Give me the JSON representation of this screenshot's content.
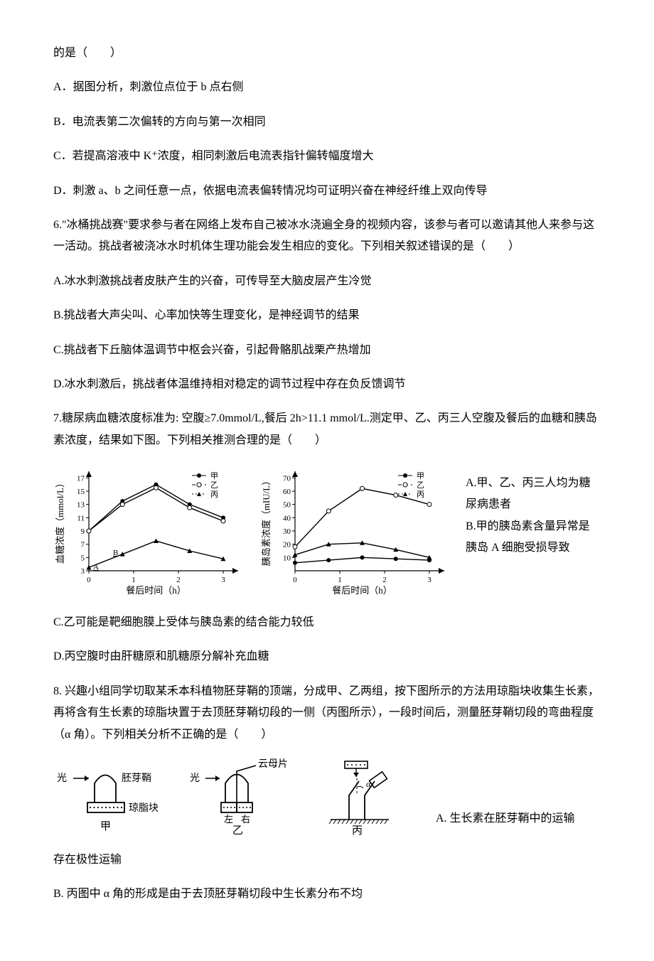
{
  "intro_cont": "的是（　　）",
  "q5": {
    "A": "A．据图分析，刺激位点位于 b 点右侧",
    "B": "B．电流表第二次偏转的方向与第一次相同",
    "C": "C．若提高溶液中 K⁺浓度，相同刺激后电流表指针偏转幅度增大",
    "D": "D．刺激 a、b 之间任意一点，依据电流表偏转情况均可证明兴奋在神经纤维上双向传导"
  },
  "q6": {
    "stem": "6.\"冰桶挑战赛\"要求参与者在网络上发布自己被冰水浇遍全身的视频内容，该参与者可以邀请其他人来参与这一活动。挑战者被浇冰水时机体生理功能会发生相应的变化。下列相关叙述错误的是（　　）",
    "A": "A.冰水刺激挑战者皮肤产生的兴奋，可传导至大脑皮层产生冷觉",
    "B": "B.挑战者大声尖叫、心率加快等生理变化，是神经调节的结果",
    "C": "C.挑战者下丘脑体温调节中枢会兴奋，引起骨骼肌战栗产热增加",
    "D": "D.冰水刺激后，挑战者体温维持相对稳定的调节过程中存在负反馈调节"
  },
  "q7": {
    "stem": "7.糖尿病血糖浓度标准为: 空腹≥7.0mmol/L,餐后 2h>11.1 mmol/L.测定甲、乙、丙三人空腹及餐后的血糖和胰岛素浓度，结果如下图。下列相关推测合理的是（　　）",
    "side_A": "A.甲、乙、丙三人均为糖尿病患者",
    "side_B": "B.甲的胰岛素含量异常是胰岛 A 细胞受损导致",
    "C": "C.乙可能是靶细胞膜上受体与胰岛素的结合能力较低",
    "D": "D.丙空腹时由肝糖原和肌糖原分解补充血糖"
  },
  "q8": {
    "stem": "8. 兴趣小组同学切取某禾本科植物胚芽鞘的顶端，分成甲、乙两组，按下图所示的方法用琼脂块收集生长素，再将含有生长素的琼脂块置于去顶胚芽鞘切段的一侧（丙图所示），一段时间后，测量胚芽鞘切段的弯曲程度（α 角）。下列相关分析不正确的是（　　）",
    "A_inline": "A. 生长素在胚芽鞘中的运输",
    "A_cont": "存在极性运输",
    "B": "B. 丙图中 α 角的形成是由于去顶胚芽鞘切段中生长素分布不均"
  },
  "chart1": {
    "type": "line",
    "ylabel": "血糖浓度（mmol/L）",
    "xlabel": "餐后时间（h）",
    "xticks": [
      "0",
      "1",
      "2",
      "3"
    ],
    "yticks": [
      "3",
      "5",
      "7",
      "9",
      "11",
      "13",
      "15",
      "17"
    ],
    "legend": [
      "甲",
      "乙",
      "丙"
    ],
    "legend_markers": [
      "solid-dot",
      "open-dot",
      "triangle"
    ],
    "annA": "A",
    "annB": "B",
    "jia_values": [
      9,
      13.5,
      16,
      13,
      11
    ],
    "yi_values": [
      9,
      13,
      15.5,
      12.5,
      10.5
    ],
    "bing_values": [
      3.5,
      5.5,
      7.5,
      6,
      4.8
    ],
    "line_color": "#000000",
    "axis_color": "#000000",
    "font_size": 11
  },
  "chart2": {
    "type": "line",
    "ylabel": "胰岛素浓度（mIU/L）",
    "xlabel": "餐后时间（h）",
    "xticks": [
      "0",
      "1",
      "2",
      "3"
    ],
    "yticks": [
      "10",
      "20",
      "30",
      "40",
      "50",
      "60",
      "70"
    ],
    "legend": [
      "甲",
      "乙",
      "丙"
    ],
    "legend_markers": [
      "solid-dot",
      "open-dot",
      "triangle"
    ],
    "jia_values": [
      6,
      8,
      10,
      9,
      8
    ],
    "yi_values": [
      18,
      45,
      62,
      57,
      50
    ],
    "bing_values": [
      12,
      20,
      21,
      16,
      10
    ],
    "line_color": "#000000",
    "axis_color": "#000000",
    "font_size": 11
  },
  "diagrams": {
    "jia_label": "甲",
    "yi_label": "乙",
    "bing_label": "丙",
    "guang": "光",
    "peiyaqiao": "胚芽鞘",
    "qiongzhikuai": "琼脂块",
    "yunmupian": "云母片",
    "zuo": "左",
    "you": "右",
    "alpha": "α",
    "line_color": "#000000"
  }
}
